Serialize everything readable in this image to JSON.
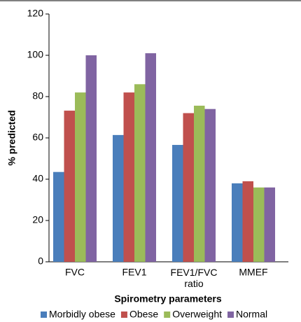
{
  "chart_data": {
    "type": "bar",
    "x_label": "Spirometry parameters",
    "y_label": "% predicted",
    "categories": [
      "FVC",
      "FEV1",
      "FEV1/FVC ratio",
      "MMEF"
    ],
    "series": [
      {
        "name": "Morbidly obese",
        "color": "#4a7ebb",
        "values": [
          43.5,
          61.4,
          56.6,
          38
        ]
      },
      {
        "name": "Obese",
        "color": "#c0504d",
        "values": [
          73.2,
          82,
          72,
          39
        ]
      },
      {
        "name": "Overweight",
        "color": "#9bbb59",
        "values": [
          82,
          86,
          75.6,
          36
        ]
      },
      {
        "name": "Normal",
        "color": "#8064a2",
        "values": [
          100,
          101,
          74,
          36
        ]
      }
    ],
    "ylim": [
      0,
      120
    ],
    "yticks": [
      0,
      20,
      40,
      60,
      80,
      100,
      120
    ],
    "grid": false,
    "legend": "bottom"
  }
}
